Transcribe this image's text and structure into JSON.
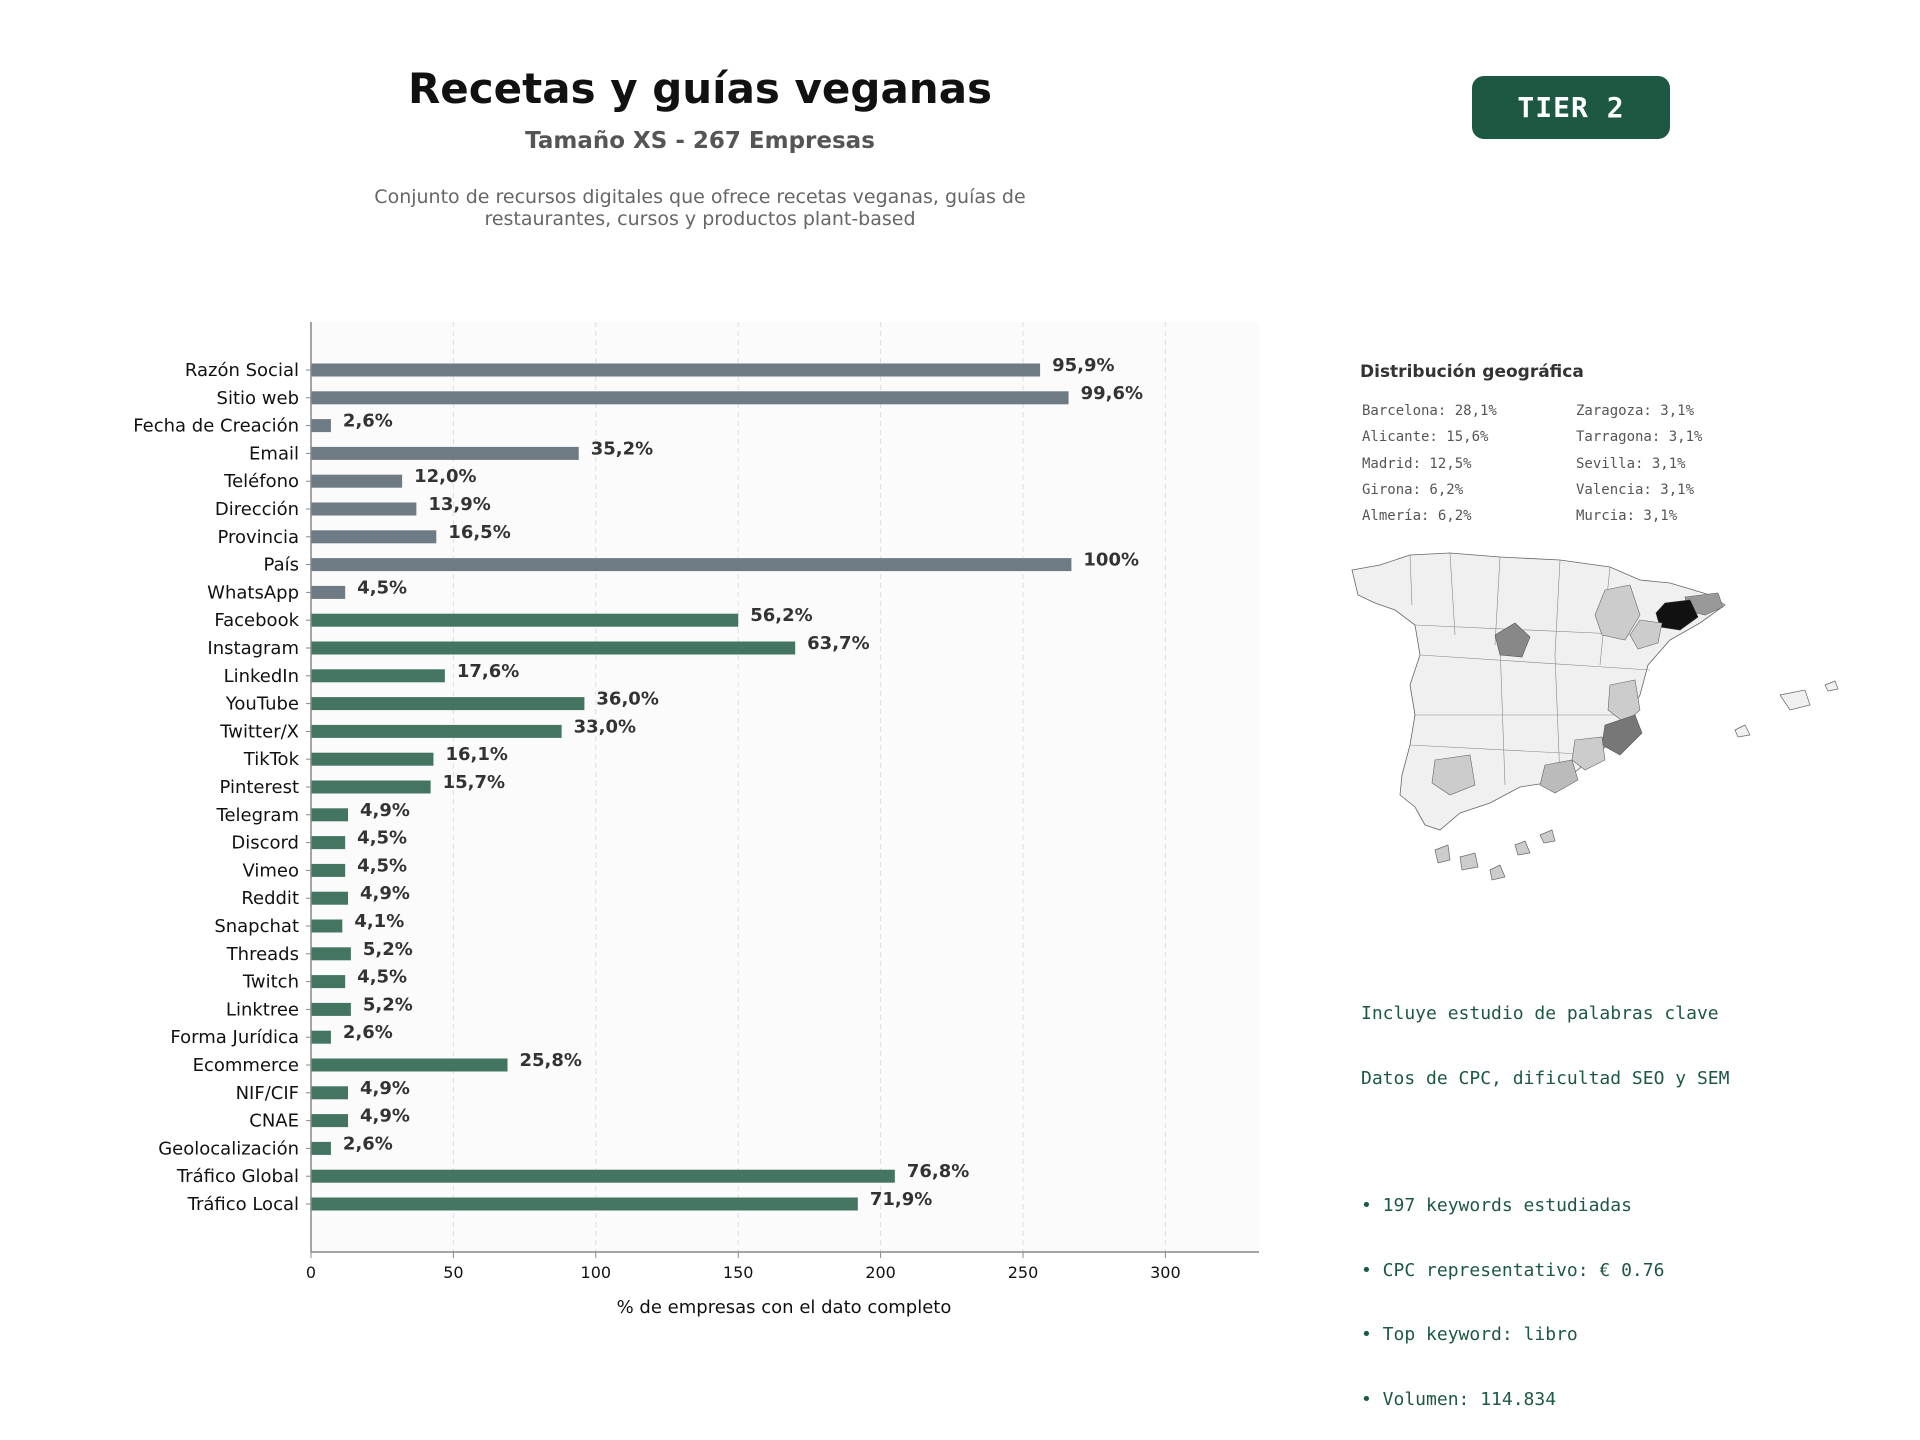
{
  "header": {
    "title": "Recetas y guías veganas",
    "subtitle": "Tamaño XS - 267 Empresas",
    "description_line1": "Conjunto de recursos digitales que ofrece recetas veganas, guías de",
    "description_line2": "restaurantes, cursos y productos plant-based",
    "tier_badge": "TIER 2"
  },
  "colors": {
    "grey_bar": "#6e7a84",
    "green_bar": "#437561",
    "accent": "#1d5843"
  },
  "chart_data": {
    "type": "bar",
    "orientation": "horizontal",
    "xlabel": "% de empresas con el dato completo",
    "xlim": [
      0,
      333
    ],
    "xticks": [
      0,
      50,
      100,
      150,
      200,
      250,
      300
    ],
    "grid": "vertical dashed",
    "categories": [
      "Razón Social",
      "Sitio web",
      "Fecha de Creación",
      "Email",
      "Teléfono",
      "Dirección",
      "Provincia",
      "País",
      "WhatsApp",
      "Facebook",
      "Instagram",
      "LinkedIn",
      "YouTube",
      "Twitter/X",
      "TikTok",
      "Pinterest",
      "Telegram",
      "Discord",
      "Vimeo",
      "Reddit",
      "Snapchat",
      "Threads",
      "Twitch",
      "Linktree",
      "Forma Jurídica",
      "Ecommerce",
      "NIF/CIF",
      "CNAE",
      "Geolocalización",
      "Tráfico Global",
      "Tráfico Local"
    ],
    "values": [
      256,
      266,
      7,
      94,
      32,
      37,
      44,
      267,
      12,
      150,
      170,
      47,
      96,
      88,
      43,
      42,
      13,
      12,
      12,
      13,
      11,
      14,
      12,
      14,
      7,
      69,
      13,
      13,
      7,
      205,
      192
    ],
    "value_labels": [
      "95,9%",
      "99,6%",
      "2,6%",
      "35,2%",
      "12,0%",
      "13,9%",
      "16,5%",
      "100%",
      "4,5%",
      "56,2%",
      "63,7%",
      "17,6%",
      "36,0%",
      "33,0%",
      "16,1%",
      "15,7%",
      "4,9%",
      "4,5%",
      "4,5%",
      "4,9%",
      "4,1%",
      "5,2%",
      "4,5%",
      "5,2%",
      "2,6%",
      "25,8%",
      "4,9%",
      "4,9%",
      "2,6%",
      "76,8%",
      "71,9%"
    ],
    "groups": [
      "grey",
      "grey",
      "grey",
      "grey",
      "grey",
      "grey",
      "grey",
      "grey",
      "grey",
      "green",
      "green",
      "green",
      "green",
      "green",
      "green",
      "green",
      "green",
      "green",
      "green",
      "green",
      "green",
      "green",
      "green",
      "green",
      "green",
      "green",
      "green",
      "green",
      "green",
      "green",
      "green"
    ]
  },
  "geo": {
    "title": "Distribución geográfica",
    "left_col": [
      "Barcelona: 28,1%",
      "Alicante: 15,6%",
      "Madrid: 12,5%",
      "Girona: 6,2%",
      "Almería: 6,2%"
    ],
    "right_col": [
      "Zaragoza: 3,1%",
      "Tarragona: 3,1%",
      "Sevilla: 3,1%",
      "Valencia: 3,1%",
      "Murcia: 3,1%"
    ],
    "map_shading": "choropleth of Spain provinces; darkest = Barcelona"
  },
  "keywords": {
    "line1": "Incluye estudio de palabras clave",
    "line2": "Datos de CPC, dificultad SEO y SEM",
    "bullet1": "• 197 keywords estudiadas",
    "bullet2": "• CPC representativo: € 0.76",
    "bullet3": "• Top keyword: libro",
    "bullet4": "• Volumen: 114.834"
  }
}
